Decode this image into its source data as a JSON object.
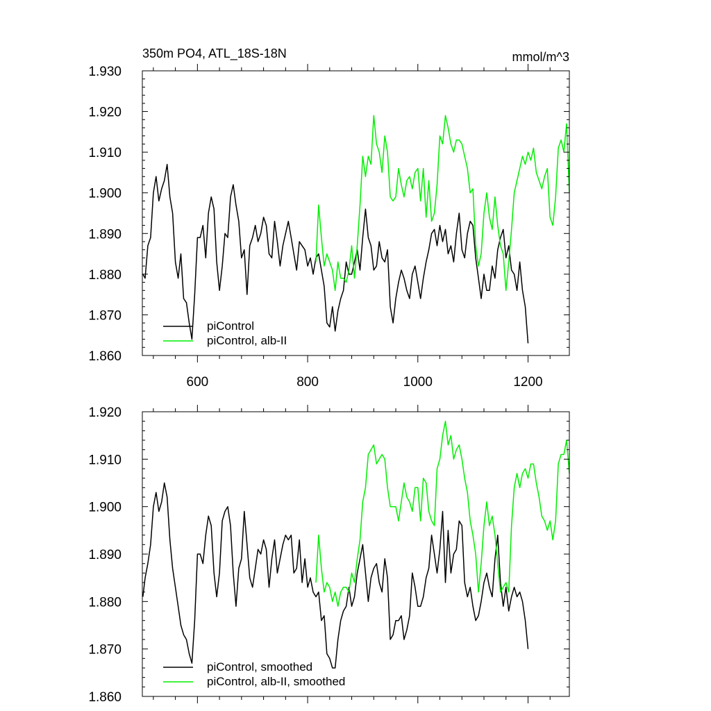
{
  "figure": {
    "title_left": "350m PO4, ATL_18S-18N",
    "title_right": "mmol/m^3"
  },
  "colors": {
    "black": "#000000",
    "green": "#00ee00"
  },
  "chart_data": [
    {
      "type": "line",
      "title": "350m PO4, ATL_18S-18N",
      "units": "mmol/m^3",
      "xlim": [
        500,
        1275
      ],
      "ylim": [
        1.86,
        1.93
      ],
      "x_ticks": [
        600,
        800,
        1000,
        1200
      ],
      "x_tick_labels": [
        "600",
        "800",
        "1000",
        "1200"
      ],
      "y_ticks": [
        1.86,
        1.87,
        1.88,
        1.89,
        1.9,
        1.91,
        1.92,
        1.93
      ],
      "y_tick_labels": [
        "1.860",
        "1.870",
        "1.880",
        "1.890",
        "1.900",
        "1.910",
        "1.920",
        "1.930"
      ],
      "legend": [
        "piControl",
        "piControl, alb-II"
      ],
      "legend_position": "bottom-left",
      "series": [
        {
          "name": "piControl",
          "color": "#000000",
          "x": [
            501,
            505,
            510,
            515,
            520,
            525,
            530,
            535,
            540,
            545,
            550,
            555,
            560,
            565,
            570,
            575,
            580,
            585,
            590,
            595,
            600,
            605,
            610,
            615,
            620,
            625,
            630,
            635,
            640,
            645,
            650,
            655,
            660,
            665,
            670,
            675,
            680,
            685,
            690,
            695,
            700,
            705,
            710,
            715,
            720,
            725,
            730,
            735,
            740,
            745,
            750,
            755,
            760,
            765,
            770,
            775,
            780,
            785,
            790,
            795,
            800,
            805,
            810,
            815,
            820,
            825,
            830,
            835,
            840,
            845,
            850,
            855,
            860,
            865,
            870,
            875,
            880,
            885,
            890,
            895,
            900,
            905,
            910,
            915,
            920,
            925,
            930,
            935,
            940,
            945,
            950,
            955,
            960,
            965,
            970,
            975,
            980,
            985,
            990,
            995,
            1000,
            1005,
            1010,
            1015,
            1020,
            1025,
            1030,
            1035,
            1040,
            1045,
            1050,
            1055,
            1060,
            1065,
            1070,
            1075,
            1080,
            1085,
            1090,
            1095,
            1100,
            1105,
            1110,
            1115,
            1120,
            1125,
            1130,
            1135,
            1140,
            1145,
            1150,
            1155,
            1160,
            1165,
            1170,
            1175,
            1180,
            1185,
            1190,
            1195,
            1200
          ],
          "y": [
            1.88,
            1.879,
            1.887,
            1.889,
            1.9,
            1.904,
            1.898,
            1.901,
            1.903,
            1.907,
            1.899,
            1.895,
            1.883,
            1.879,
            1.885,
            1.874,
            1.873,
            1.868,
            1.864,
            1.875,
            1.889,
            1.889,
            1.892,
            1.884,
            1.895,
            1.899,
            1.896,
            1.883,
            1.876,
            1.882,
            1.89,
            1.889,
            1.899,
            1.902,
            1.897,
            1.893,
            1.884,
            1.886,
            1.875,
            1.887,
            1.889,
            1.892,
            1.888,
            1.89,
            1.894,
            1.892,
            1.885,
            1.884,
            1.893,
            1.888,
            1.882,
            1.887,
            1.89,
            1.893,
            1.889,
            1.885,
            1.881,
            1.888,
            1.887,
            1.886,
            1.882,
            1.884,
            1.88,
            1.884,
            1.885,
            1.881,
            1.877,
            1.868,
            1.867,
            1.872,
            1.866,
            1.871,
            1.874,
            1.876,
            1.883,
            1.88,
            1.88,
            1.883,
            1.886,
            1.881,
            1.889,
            1.896,
            1.889,
            1.887,
            1.881,
            1.882,
            1.888,
            1.884,
            1.883,
            1.886,
            1.872,
            1.868,
            1.874,
            1.878,
            1.881,
            1.879,
            1.876,
            1.874,
            1.88,
            1.882,
            1.878,
            1.874,
            1.879,
            1.883,
            1.886,
            1.89,
            1.891,
            1.887,
            1.892,
            1.888,
            1.891,
            1.885,
            1.887,
            1.883,
            1.89,
            1.895,
            1.886,
            1.884,
            1.89,
            1.893,
            1.892,
            1.884,
            1.879,
            1.874,
            1.88,
            1.876,
            1.876,
            1.882,
            1.879,
            1.886,
            1.889,
            1.891,
            1.884,
            1.887,
            1.881,
            1.88,
            1.876,
            1.883,
            1.876,
            1.872,
            1.863
          ]
        },
        {
          "name": "piControl, alb-II",
          "color": "#00ee00",
          "x": [
            815,
            820,
            825,
            830,
            835,
            840,
            845,
            850,
            855,
            860,
            865,
            870,
            875,
            880,
            885,
            890,
            895,
            900,
            905,
            910,
            915,
            920,
            925,
            930,
            935,
            940,
            945,
            950,
            955,
            960,
            965,
            970,
            975,
            980,
            985,
            990,
            995,
            1000,
            1005,
            1010,
            1015,
            1020,
            1025,
            1030,
            1035,
            1040,
            1045,
            1050,
            1055,
            1060,
            1065,
            1070,
            1075,
            1080,
            1085,
            1090,
            1095,
            1100,
            1105,
            1110,
            1115,
            1120,
            1125,
            1130,
            1135,
            1140,
            1145,
            1150,
            1155,
            1160,
            1165,
            1170,
            1175,
            1180,
            1185,
            1190,
            1195,
            1200,
            1205,
            1210,
            1215,
            1220,
            1225,
            1230,
            1235,
            1240,
            1245,
            1250,
            1255,
            1260,
            1265,
            1270,
            1275
          ],
          "y": [
            1.883,
            1.897,
            1.889,
            1.882,
            1.885,
            1.883,
            1.881,
            1.876,
            1.883,
            1.879,
            1.879,
            1.878,
            1.881,
            1.887,
            1.879,
            1.887,
            1.897,
            1.909,
            1.904,
            1.909,
            1.907,
            1.919,
            1.912,
            1.91,
            1.905,
            1.914,
            1.91,
            1.899,
            1.898,
            1.899,
            1.906,
            1.902,
            1.899,
            1.903,
            1.904,
            1.901,
            1.905,
            1.906,
            1.898,
            1.906,
            1.894,
            1.903,
            1.893,
            1.895,
            1.902,
            1.914,
            1.912,
            1.919,
            1.916,
            1.912,
            1.91,
            1.913,
            1.913,
            1.912,
            1.909,
            1.906,
            1.9,
            1.901,
            1.887,
            1.882,
            1.885,
            1.895,
            1.9,
            1.894,
            1.891,
            1.899,
            1.892,
            1.887,
            1.885,
            1.876,
            1.883,
            1.891,
            1.9,
            1.903,
            1.906,
            1.909,
            1.907,
            1.91,
            1.908,
            1.911,
            1.905,
            1.903,
            1.901,
            1.904,
            1.906,
            1.894,
            1.892,
            1.899,
            1.911,
            1.913,
            1.91,
            1.917,
            1.9
          ]
        }
      ]
    },
    {
      "type": "line",
      "xlim": [
        500,
        1275
      ],
      "ylim": [
        1.86,
        1.92
      ],
      "x_ticks": [
        600,
        800,
        1000,
        1200
      ],
      "y_ticks": [
        1.86,
        1.87,
        1.88,
        1.89,
        1.9,
        1.91,
        1.92
      ],
      "y_tick_labels": [
        "1.860",
        "1.870",
        "1.880",
        "1.890",
        "1.900",
        "1.910",
        "1.920"
      ],
      "legend": [
        "piControl, smoothed",
        "piControl, alb-II, smoothed"
      ],
      "legend_position": "bottom-left",
      "series": [
        {
          "name": "piControl, smoothed",
          "color": "#000000",
          "x": [
            501,
            505,
            510,
            515,
            520,
            525,
            530,
            535,
            540,
            545,
            550,
            555,
            560,
            565,
            570,
            575,
            580,
            585,
            590,
            595,
            600,
            605,
            610,
            615,
            620,
            625,
            630,
            635,
            640,
            645,
            650,
            655,
            660,
            665,
            670,
            675,
            680,
            685,
            690,
            695,
            700,
            705,
            710,
            715,
            720,
            725,
            730,
            735,
            740,
            745,
            750,
            755,
            760,
            765,
            770,
            775,
            780,
            785,
            790,
            795,
            800,
            805,
            810,
            815,
            820,
            825,
            830,
            835,
            840,
            845,
            850,
            855,
            860,
            865,
            870,
            875,
            880,
            885,
            890,
            895,
            900,
            905,
            910,
            915,
            920,
            925,
            930,
            935,
            940,
            945,
            950,
            955,
            960,
            965,
            970,
            975,
            980,
            985,
            990,
            995,
            1000,
            1005,
            1010,
            1015,
            1020,
            1025,
            1030,
            1035,
            1040,
            1045,
            1050,
            1055,
            1060,
            1065,
            1070,
            1075,
            1080,
            1085,
            1090,
            1095,
            1100,
            1105,
            1110,
            1115,
            1120,
            1125,
            1130,
            1135,
            1140,
            1145,
            1150,
            1155,
            1160,
            1165,
            1170,
            1175,
            1180,
            1185,
            1190,
            1195,
            1200
          ],
          "y": [
            1.881,
            1.885,
            1.888,
            1.892,
            1.9,
            1.903,
            1.899,
            1.901,
            1.905,
            1.902,
            1.893,
            1.887,
            1.883,
            1.879,
            1.875,
            1.873,
            1.872,
            1.869,
            1.867,
            1.876,
            1.89,
            1.89,
            1.888,
            1.894,
            1.898,
            1.896,
            1.886,
            1.881,
            1.886,
            1.897,
            1.899,
            1.9,
            1.896,
            1.886,
            1.879,
            1.887,
            1.889,
            1.899,
            1.892,
            1.885,
            1.883,
            1.887,
            1.891,
            1.89,
            1.893,
            1.891,
            1.883,
            1.889,
            1.893,
            1.886,
            1.889,
            1.892,
            1.894,
            1.893,
            1.894,
            1.886,
            1.887,
            1.893,
            1.884,
            1.889,
            1.883,
            1.885,
            1.882,
            1.881,
            1.882,
            1.876,
            1.877,
            1.869,
            1.868,
            1.866,
            1.866,
            1.872,
            1.876,
            1.878,
            1.879,
            1.883,
            1.879,
            1.881,
            1.886,
            1.889,
            1.892,
            1.886,
            1.88,
            1.885,
            1.887,
            1.888,
            1.884,
            1.882,
            1.889,
            1.885,
            1.872,
            1.873,
            1.876,
            1.876,
            1.877,
            1.872,
            1.874,
            1.877,
            1.886,
            1.883,
            1.879,
            1.879,
            1.881,
            1.885,
            1.887,
            1.894,
            1.89,
            1.886,
            1.891,
            1.899,
            1.884,
            1.895,
            1.886,
            1.89,
            1.891,
            1.897,
            1.896,
            1.884,
            1.881,
            1.883,
            1.879,
            1.876,
            1.877,
            1.88,
            1.884,
            1.886,
            1.883,
            1.881,
            1.889,
            1.894,
            1.884,
            1.879,
            1.883,
            1.878,
            1.881,
            1.883,
            1.881,
            1.882,
            1.88,
            1.876,
            1.87
          ]
        },
        {
          "name": "piControl, alb-II, smoothed",
          "color": "#00ee00",
          "x": [
            815,
            820,
            825,
            830,
            835,
            840,
            845,
            850,
            855,
            860,
            865,
            870,
            875,
            880,
            885,
            890,
            895,
            900,
            905,
            910,
            915,
            920,
            925,
            930,
            935,
            940,
            945,
            950,
            955,
            960,
            965,
            970,
            975,
            980,
            985,
            990,
            995,
            1000,
            1005,
            1010,
            1015,
            1020,
            1025,
            1030,
            1035,
            1040,
            1045,
            1050,
            1055,
            1060,
            1065,
            1070,
            1075,
            1080,
            1085,
            1090,
            1095,
            1100,
            1105,
            1110,
            1115,
            1120,
            1125,
            1130,
            1135,
            1140,
            1145,
            1150,
            1155,
            1160,
            1165,
            1170,
            1175,
            1180,
            1185,
            1190,
            1195,
            1200,
            1205,
            1210,
            1215,
            1220,
            1225,
            1230,
            1235,
            1240,
            1245,
            1250,
            1255,
            1260,
            1265,
            1270,
            1275
          ],
          "y": [
            1.884,
            1.894,
            1.887,
            1.882,
            1.884,
            1.883,
            1.88,
            1.882,
            1.879,
            1.882,
            1.883,
            1.883,
            1.882,
            1.886,
            1.884,
            1.889,
            1.893,
            1.901,
            1.904,
            1.911,
            1.912,
            1.913,
            1.909,
            1.91,
            1.911,
            1.91,
            1.904,
            1.9,
            1.9,
            1.9,
            1.897,
            1.901,
            1.905,
            1.902,
            1.901,
            1.899,
            1.904,
            1.904,
            1.897,
            1.906,
            1.905,
            1.899,
            1.897,
            1.896,
            1.908,
            1.91,
            1.915,
            1.918,
            1.913,
            1.915,
            1.91,
            1.912,
            1.913,
            1.91,
            1.906,
            1.903,
            1.897,
            1.894,
            1.89,
            1.882,
            1.888,
            1.896,
            1.901,
            1.896,
            1.898,
            1.894,
            1.888,
            1.882,
            1.883,
            1.884,
            1.882,
            1.896,
            1.904,
            1.907,
            1.904,
            1.907,
            1.908,
            1.906,
            1.909,
            1.909,
            1.905,
            1.902,
            1.898,
            1.897,
            1.895,
            1.897,
            1.893,
            1.897,
            1.909,
            1.911,
            1.911,
            1.914,
            1.907
          ]
        }
      ]
    }
  ]
}
